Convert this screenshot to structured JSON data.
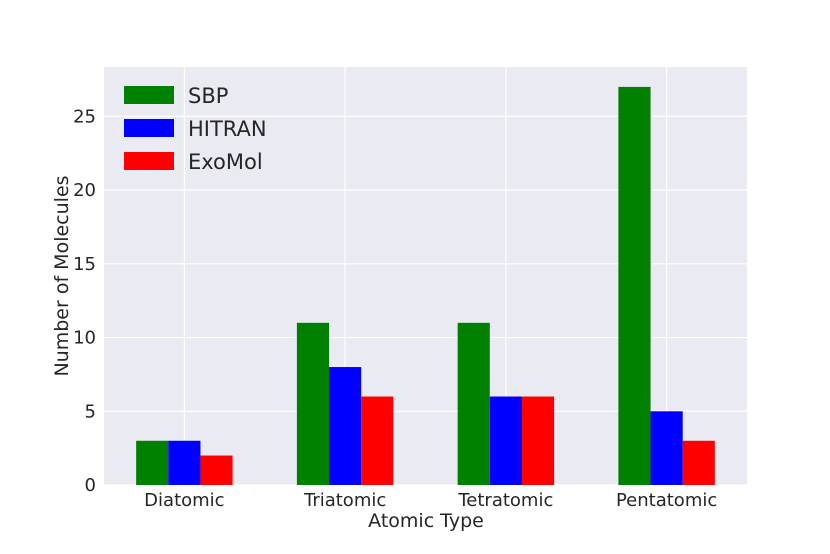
{
  "chart_data": {
    "type": "bar",
    "categories": [
      "Diatomic",
      "Triatomic",
      "Tetratomic",
      "Pentatomic"
    ],
    "series": [
      {
        "name": "SBP",
        "color": "#008000",
        "values": [
          3,
          11,
          11,
          27
        ]
      },
      {
        "name": "HITRAN",
        "color": "#0000ff",
        "values": [
          3,
          8,
          6,
          5
        ]
      },
      {
        "name": "ExoMol",
        "color": "#ff0000",
        "values": [
          2,
          6,
          6,
          3
        ]
      }
    ],
    "xlabel": "Atomic Type",
    "ylabel": "Number of Molecules",
    "ylim": [
      0,
      28.35
    ],
    "yticks": [
      0,
      5,
      10,
      15,
      20,
      25
    ],
    "grid": true,
    "legend": "top-left",
    "background": "#eaeaf2"
  }
}
